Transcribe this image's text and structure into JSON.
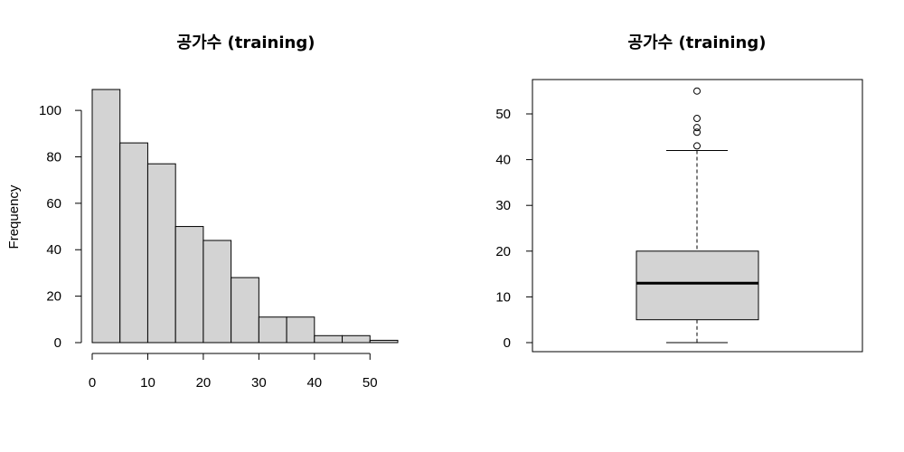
{
  "chart_data": [
    {
      "type": "histogram",
      "title": "공가수 (training)",
      "xlabel": "",
      "ylabel": "Frequency",
      "bins": [
        {
          "from": 0,
          "to": 5,
          "count": 109
        },
        {
          "from": 5,
          "to": 10,
          "count": 86
        },
        {
          "from": 10,
          "to": 15,
          "count": 77
        },
        {
          "from": 15,
          "to": 20,
          "count": 50
        },
        {
          "from": 20,
          "to": 25,
          "count": 44
        },
        {
          "from": 25,
          "to": 30,
          "count": 28
        },
        {
          "from": 30,
          "to": 35,
          "count": 11
        },
        {
          "from": 35,
          "to": 40,
          "count": 11
        },
        {
          "from": 40,
          "to": 45,
          "count": 3
        },
        {
          "from": 45,
          "to": 50,
          "count": 3
        },
        {
          "from": 50,
          "to": 55,
          "count": 1
        }
      ],
      "xticks": [
        0,
        10,
        20,
        30,
        40,
        50
      ],
      "yticks": [
        0,
        20,
        40,
        60,
        80,
        100
      ],
      "xlim": [
        0,
        55
      ],
      "ylim": [
        0,
        109
      ],
      "bar_color": "#d3d3d3",
      "grid": false
    },
    {
      "type": "boxplot",
      "title": "공가수 (training)",
      "ylabel": "",
      "box": {
        "whisker_low": 0,
        "q1": 5,
        "median": 13,
        "q3": 20,
        "whisker_high": 42
      },
      "outliers": [
        43,
        46,
        47,
        49,
        55
      ],
      "yticks": [
        0,
        10,
        20,
        30,
        40,
        50
      ],
      "ylim": [
        0,
        55
      ],
      "box_color": "#d3d3d3",
      "grid": false
    }
  ]
}
